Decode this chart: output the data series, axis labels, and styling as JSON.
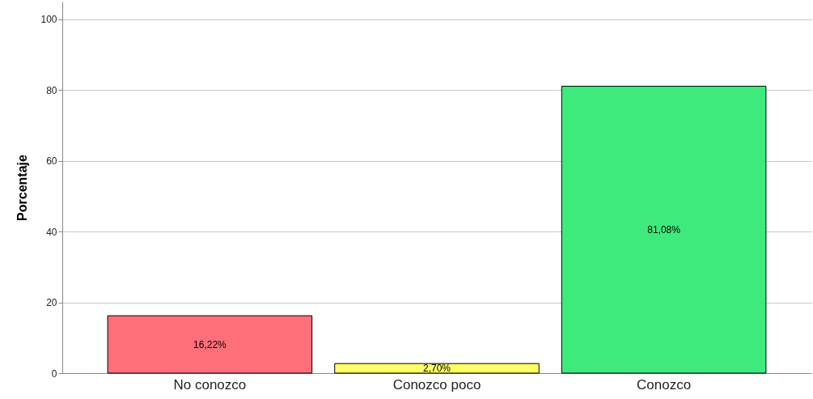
{
  "chart_data": {
    "type": "bar",
    "ylabel": "Porcentaje",
    "categories": [
      "No conozco",
      "Conozco poco",
      "Conozco"
    ],
    "values": [
      16.22,
      2.7,
      81.08
    ],
    "colors": [
      "#ff6f7a",
      "#ffff66",
      "#3fea7c"
    ],
    "value_labels": [
      "16,22%",
      "2,70%",
      "81,08%"
    ],
    "ylim": [
      0,
      105
    ],
    "yticks": [
      0,
      20,
      40,
      60,
      80,
      100
    ],
    "grid": "y"
  }
}
